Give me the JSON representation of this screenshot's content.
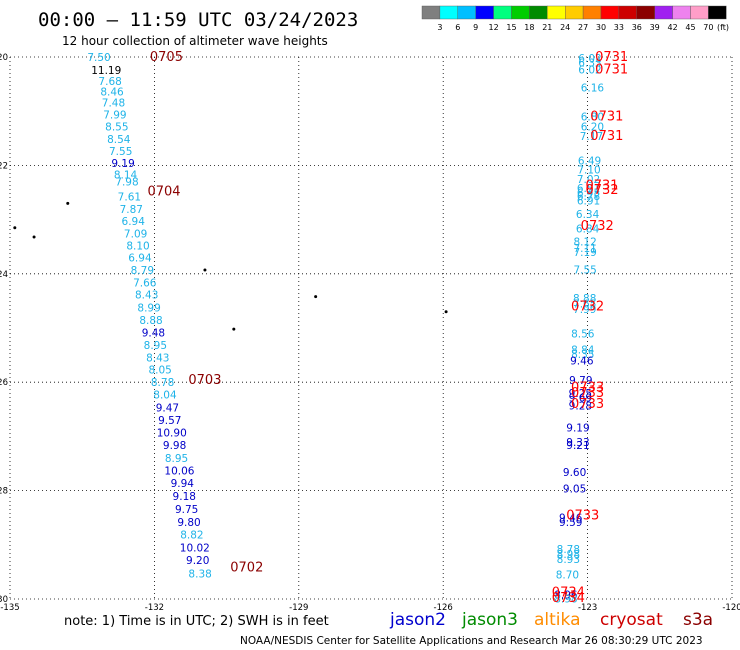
{
  "header": {
    "title": "00:00 – 11:59 UTC 03/24/2023",
    "subtitle": "12 hour collection of altimeter wave heights"
  },
  "color_scale": {
    "labels": [
      "3",
      "6",
      "9",
      "12",
      "15",
      "18",
      "21",
      "24",
      "27",
      "30",
      "33",
      "36",
      "39",
      "42",
      "45",
      "70"
    ],
    "unit": "(ft)",
    "colors": [
      "#7f7f7f",
      "#00ffff",
      "#00bfff",
      "#0000ff",
      "#00ff7f",
      "#00cd00",
      "#008b00",
      "#ffff00",
      "#ffcc00",
      "#ff8000",
      "#ff0000",
      "#cd0000",
      "#8b0000",
      "#a020f0",
      "#ee82ee",
      "#ff9ec8",
      "#000000"
    ]
  },
  "footer": {
    "note": "note:  1) Time is in UTC; 2) SWH is in feet",
    "credit": "NOAA/NESDIS Center for Satellite Applications and Research    Mar 26 08:30:29 UTC 2023",
    "satellites": [
      {
        "name": "jason2",
        "color": "#0000cd"
      },
      {
        "name": "jason3",
        "color": "#008b00"
      },
      {
        "name": "altika",
        "color": "#ff8c00"
      },
      {
        "name": "cryosat",
        "color": "#cd0000"
      },
      {
        "name": "s3a",
        "color": "#8b0000"
      }
    ]
  },
  "chart_data": {
    "type": "scatter",
    "xlim": [
      -135,
      -120
    ],
    "ylim": [
      -30,
      -20
    ],
    "x_ticks": [
      -135,
      -132,
      -129,
      -126,
      -123,
      -120
    ],
    "y_ticks": [
      -20,
      -22,
      -24,
      -26,
      -28,
      -30
    ],
    "grid": true,
    "colors": {
      "light": "#1fb3e8",
      "dark": "#0000c8",
      "black": "#000000",
      "s3a": "#8b0000",
      "cryosat": "#ff0000"
    },
    "series": [
      {
        "points": [
          [
            -133.15,
            -20.0,
            "7.50",
            "light"
          ],
          [
            -133.0,
            -20.24,
            "11.19",
            "black"
          ],
          [
            -132.92,
            -20.44,
            "7.68",
            "light"
          ],
          [
            -132.88,
            -20.64,
            "8.46",
            "light"
          ],
          [
            -132.85,
            -20.84,
            "7.48",
            "light"
          ],
          [
            -132.82,
            -21.06,
            "7.99",
            "light"
          ],
          [
            -132.78,
            -21.28,
            "8.55",
            "light"
          ],
          [
            -132.74,
            -21.51,
            "8.54",
            "light"
          ],
          [
            -132.7,
            -21.73,
            "7.55",
            "light"
          ],
          [
            -132.65,
            -21.96,
            "9.19",
            "dark"
          ],
          [
            -132.6,
            -22.17,
            "8.14",
            "light"
          ],
          [
            -132.57,
            -22.3,
            "7.98",
            "light"
          ],
          [
            -132.52,
            -22.57,
            "7.61",
            "light"
          ],
          [
            -132.48,
            -22.8,
            "7.87",
            "light"
          ],
          [
            -132.44,
            -23.03,
            "6.94",
            "light"
          ],
          [
            -132.39,
            -23.26,
            "7.09",
            "light"
          ],
          [
            -132.34,
            -23.48,
            "8.10",
            "light"
          ],
          [
            -132.3,
            -23.7,
            "6.94",
            "light"
          ],
          [
            -132.25,
            -23.93,
            "8.79",
            "light"
          ],
          [
            -132.2,
            -24.16,
            "7.66",
            "light"
          ],
          [
            -132.16,
            -24.38,
            "8.43",
            "light"
          ],
          [
            -132.11,
            -24.62,
            "8.99",
            "light"
          ],
          [
            -132.07,
            -24.85,
            "8.88",
            "light"
          ],
          [
            -132.02,
            -25.08,
            "9.48",
            "dark"
          ],
          [
            -131.98,
            -25.31,
            "8.95",
            "light"
          ],
          [
            -131.93,
            -25.54,
            "8.43",
            "light"
          ],
          [
            -131.88,
            -25.77,
            "8.05",
            "light"
          ],
          [
            -131.83,
            -26.0,
            "8.78",
            "light"
          ],
          [
            -131.78,
            -26.23,
            "8.04",
            "light"
          ],
          [
            -131.73,
            -26.47,
            "9.47",
            "dark"
          ],
          [
            -131.68,
            -26.7,
            "9.57",
            "dark"
          ],
          [
            -131.64,
            -26.93,
            "10.90",
            "dark"
          ],
          [
            -131.58,
            -27.16,
            "9.98",
            "dark"
          ],
          [
            -131.54,
            -27.4,
            "8.95",
            "light"
          ],
          [
            -131.48,
            -27.63,
            "10.06",
            "dark"
          ],
          [
            -131.42,
            -27.86,
            "9.94",
            "dark"
          ],
          [
            -131.38,
            -28.1,
            "9.18",
            "dark"
          ],
          [
            -131.33,
            -28.34,
            "9.75",
            "dark"
          ],
          [
            -131.28,
            -28.58,
            "9.80",
            "dark"
          ],
          [
            -131.22,
            -28.81,
            "8.82",
            "light"
          ],
          [
            -131.16,
            -29.05,
            "10.02",
            "dark"
          ],
          [
            -131.1,
            -29.28,
            "9.20",
            "dark"
          ],
          [
            -131.05,
            -29.53,
            "8.38",
            "light"
          ]
        ]
      },
      {
        "points": [
          [
            -122.95,
            -20.02,
            "6.02",
            "light"
          ],
          [
            -122.95,
            -20.1,
            "6.33",
            "light"
          ],
          [
            -122.95,
            -20.23,
            "6.02",
            "light"
          ],
          [
            -122.9,
            -20.56,
            "6.16",
            "light"
          ],
          [
            -122.9,
            -21.1,
            "6.80",
            "light"
          ],
          [
            -122.9,
            -21.28,
            "6.20",
            "light"
          ],
          [
            -122.92,
            -21.46,
            "7.17",
            "light"
          ],
          [
            -122.96,
            -21.91,
            "6.49",
            "light"
          ],
          [
            -122.97,
            -22.08,
            "7.10",
            "light"
          ],
          [
            -122.98,
            -22.25,
            "7.02",
            "light"
          ],
          [
            -122.98,
            -22.42,
            "6.51",
            "light"
          ],
          [
            -122.98,
            -22.5,
            "6.45",
            "light"
          ],
          [
            -122.98,
            -22.56,
            "6.78",
            "light"
          ],
          [
            -122.98,
            -22.65,
            "6.91",
            "light"
          ],
          [
            -123.0,
            -22.9,
            "6.34",
            "light"
          ],
          [
            -123.0,
            -23.16,
            "6.84",
            "light"
          ],
          [
            -123.05,
            -23.4,
            "8.12",
            "light"
          ],
          [
            -123.05,
            -23.52,
            "7.11",
            "light"
          ],
          [
            -123.05,
            -23.6,
            "7.19",
            "light"
          ],
          [
            -123.05,
            -23.92,
            "7.55",
            "light"
          ],
          [
            -123.06,
            -24.45,
            "8.88",
            "light"
          ],
          [
            -123.06,
            -24.55,
            "7.65",
            "light"
          ],
          [
            -123.06,
            -24.65,
            "7.99",
            "light"
          ],
          [
            -123.1,
            -25.1,
            "8.56",
            "light"
          ],
          [
            -123.1,
            -25.4,
            "8.84",
            "light"
          ],
          [
            -123.1,
            -25.48,
            "8.35",
            "light"
          ],
          [
            -123.12,
            -25.6,
            "9.46",
            "dark"
          ],
          [
            -123.14,
            -25.96,
            "9.79",
            "dark"
          ],
          [
            -123.15,
            -26.2,
            "9.25",
            "dark"
          ],
          [
            -123.15,
            -26.28,
            "9.69",
            "dark"
          ],
          [
            -123.15,
            -26.43,
            "9.28",
            "dark"
          ],
          [
            -123.2,
            -26.84,
            "9.19",
            "dark"
          ],
          [
            -123.2,
            -27.1,
            "9.33",
            "dark"
          ],
          [
            -123.2,
            -27.16,
            "9.21",
            "dark"
          ],
          [
            -123.27,
            -27.66,
            "9.60",
            "dark"
          ],
          [
            -123.27,
            -27.96,
            "9.05",
            "dark"
          ],
          [
            -123.35,
            -28.5,
            "9.46",
            "dark"
          ],
          [
            -123.35,
            -28.58,
            "9.59",
            "dark"
          ],
          [
            -123.4,
            -29.08,
            "8.78",
            "light"
          ],
          [
            -123.4,
            -29.17,
            "8.98",
            "light"
          ],
          [
            -123.4,
            -29.26,
            "8.93",
            "light"
          ],
          [
            -123.42,
            -29.55,
            "8.70",
            "light"
          ],
          [
            -123.45,
            -29.92,
            "8.96",
            "dark"
          ],
          [
            -123.45,
            -29.99,
            "8.98",
            "light"
          ]
        ]
      }
    ],
    "passes": [
      {
        "label": "0705",
        "x": -131.75,
        "y": -20.0,
        "color": "s3a"
      },
      {
        "label": "0704",
        "x": -131.8,
        "y": -22.48,
        "color": "s3a"
      },
      {
        "label": "0703",
        "x": -130.95,
        "y": -25.96,
        "color": "s3a"
      },
      {
        "label": "0702",
        "x": -130.08,
        "y": -29.42,
        "color": "s3a"
      },
      {
        "label": "0731",
        "x": -122.5,
        "y": -20.0,
        "color": "cryosat"
      },
      {
        "label": "0731",
        "x": -122.5,
        "y": -20.23,
        "color": "cryosat"
      },
      {
        "label": "0731",
        "x": -122.6,
        "y": -21.1,
        "color": "cryosat"
      },
      {
        "label": "0731",
        "x": -122.6,
        "y": -21.46,
        "color": "cryosat"
      },
      {
        "label": "0731",
        "x": -122.7,
        "y": -22.37,
        "color": "cryosat"
      },
      {
        "label": "0732",
        "x": -122.7,
        "y": -22.45,
        "color": "cryosat"
      },
      {
        "label": "0732",
        "x": -122.8,
        "y": -23.12,
        "color": "cryosat"
      },
      {
        "label": "0732",
        "x": -123.0,
        "y": -24.6,
        "color": "cryosat"
      },
      {
        "label": "0733",
        "x": -123.0,
        "y": -26.1,
        "color": "cryosat"
      },
      {
        "label": "0733",
        "x": -123.0,
        "y": -26.2,
        "color": "cryosat"
      },
      {
        "label": "0733",
        "x": -123.0,
        "y": -26.4,
        "color": "cryosat"
      },
      {
        "label": "0733",
        "x": -123.1,
        "y": -28.46,
        "color": "cryosat"
      },
      {
        "label": "0734",
        "x": -123.4,
        "y": -29.88,
        "color": "cryosat"
      },
      {
        "label": "0734",
        "x": -123.4,
        "y": -29.98,
        "color": "cryosat"
      }
    ],
    "islands": [
      [
        -133.8,
        -22.7
      ],
      [
        -134.9,
        -23.15
      ],
      [
        -134.5,
        -23.32
      ],
      [
        -130.95,
        -23.93
      ],
      [
        -128.65,
        -24.42
      ],
      [
        -130.35,
        -25.02
      ],
      [
        -125.94,
        -24.7
      ]
    ]
  }
}
